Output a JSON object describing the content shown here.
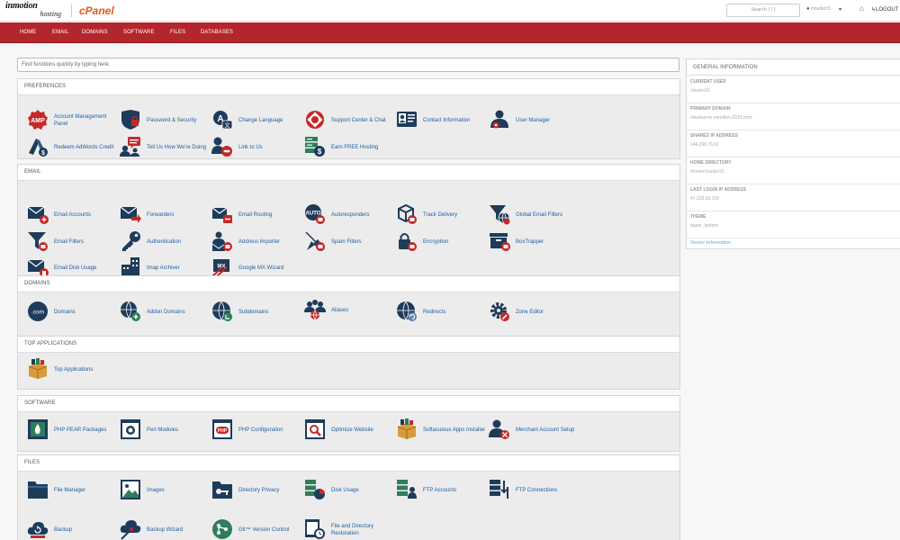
{
  "header": {
    "logo_top": "inmotion",
    "logo_bottom": "hosting",
    "cpanel_logo": "cPanel",
    "search_placeholder": "Search ( / )",
    "user_name": "clouder15",
    "logout_label": "LOGOUT"
  },
  "nav": [
    "HOME",
    "EMAIL",
    "DOMAINS",
    "SOFTWARE",
    "FILES",
    "DATABASES"
  ],
  "find_placeholder": "Find functions quickly by typing here.",
  "sections": {
    "preferences": {
      "title": "PREFERENCES",
      "items": [
        "Account Management Panel",
        "Password & Security",
        "Change Language",
        "Support Center & Chat",
        "Contact Information",
        "User Manager",
        "Redeem AdWords Credit",
        "Tell Us How We're Doing",
        "Link to Us",
        "Earn FREE Hosting"
      ]
    },
    "email": {
      "title": "EMAIL",
      "items": [
        "Email Accounts",
        "Forwarders",
        "Email Routing",
        "Autoresponders",
        "Track Delivery",
        "Global Email Filters",
        "Email Filters",
        "Authentication",
        "Address Importer",
        "Spam Filters",
        "Encryption",
        "BoxTrapper",
        "Email Disk Usage",
        "Imap Archiver",
        "Google MX Wizard"
      ]
    },
    "domains": {
      "title": "DOMAINS",
      "items": [
        "Domains",
        "Addon Domains",
        "Subdomains",
        "Aliases",
        "Redirects",
        "Zone Editor"
      ]
    },
    "top_apps": {
      "title": "TOP APPLICATIONS",
      "items": [
        "Top Applications"
      ]
    },
    "software": {
      "title": "SOFTWARE",
      "items": [
        "PHP PEAR Packages",
        "Perl Modules",
        "PHP Configuration",
        "Optimize Website",
        "Softaculous Apps Installer",
        "Merchant Account Setup"
      ]
    },
    "files": {
      "title": "FILES",
      "items": [
        "File Manager",
        "Images",
        "Directory Privacy",
        "Disk Usage",
        "FTP Accounts",
        "FTP Connections",
        "Backup",
        "Backup Wizard",
        "Git™ Version Control",
        "File and Directory Restoration"
      ]
    }
  },
  "info": {
    "title": "GENERAL INFORMATION",
    "rows": [
      {
        "label": "Current User",
        "value": "clouder15"
      },
      {
        "label": "Primary Domain",
        "value": "cloudserve-inmotion-2015.com"
      },
      {
        "label": "Shared IP Address",
        "value": "144.208.76.61"
      },
      {
        "label": "Home Directory",
        "value": "/home/clouder15"
      },
      {
        "label": "Last Login IP Address",
        "value": "47.233.56.118"
      },
      {
        "label": "Theme",
        "value": "paper_lantern"
      }
    ],
    "link": "Server Information"
  },
  "colors": {
    "nav_red": "#b4262d",
    "link_blue": "#1f5fa3",
    "icon_navy": "#1e3b5a",
    "icon_red": "#c62828"
  }
}
